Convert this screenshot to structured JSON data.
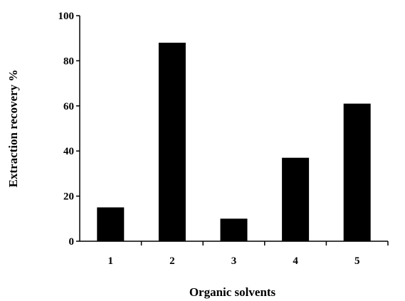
{
  "chart_data": {
    "type": "bar",
    "categories": [
      "1",
      "2",
      "3",
      "4",
      "5"
    ],
    "values": [
      15,
      88,
      10,
      37,
      61
    ],
    "xlabel": "Organic solvents",
    "ylabel": "Extraction recovery %",
    "ylim": [
      0,
      100
    ],
    "yticks": [
      "0",
      "20",
      "40",
      "60",
      "80",
      "100"
    ],
    "grid": false,
    "legend": "none",
    "bar_color": "#000000"
  }
}
